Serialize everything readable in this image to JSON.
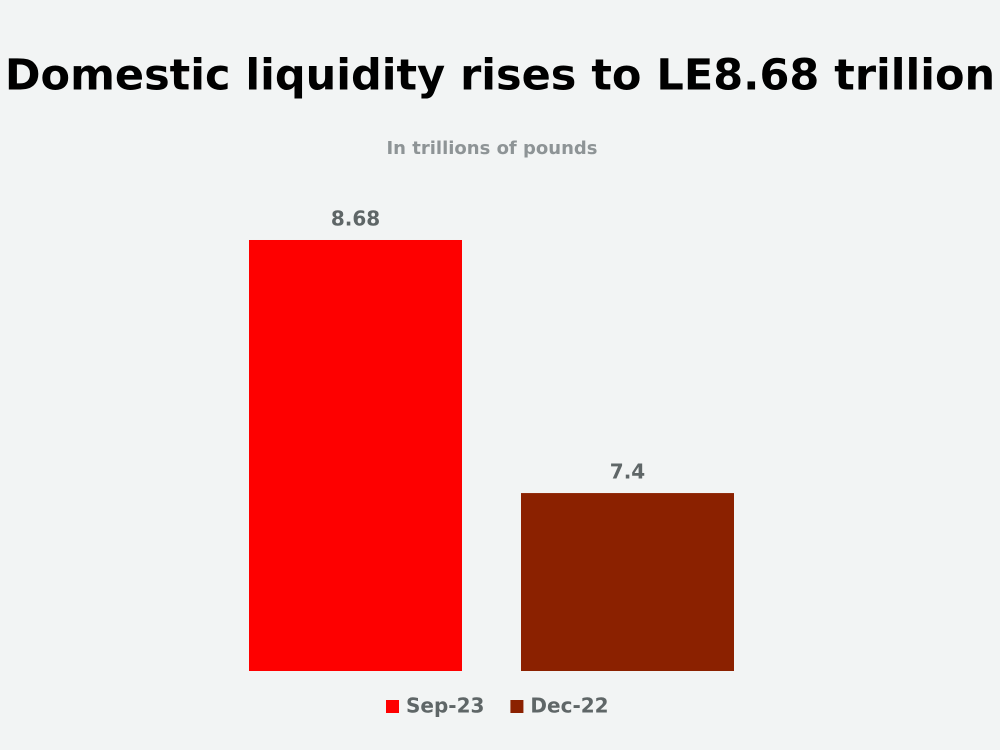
{
  "chart_data": {
    "type": "bar",
    "title": "Domestic liquidity rises to LE8.68 trillion",
    "subtitle": "In trillions of pounds",
    "series": [
      {
        "name": "Sep-23",
        "color": "#fe0000",
        "values": [
          8.68
        ]
      },
      {
        "name": "Dec-22",
        "color": "#8b2100",
        "values": [
          7.4
        ]
      }
    ],
    "ylim": [
      6.5,
      8.9
    ],
    "legend": "bottom"
  }
}
